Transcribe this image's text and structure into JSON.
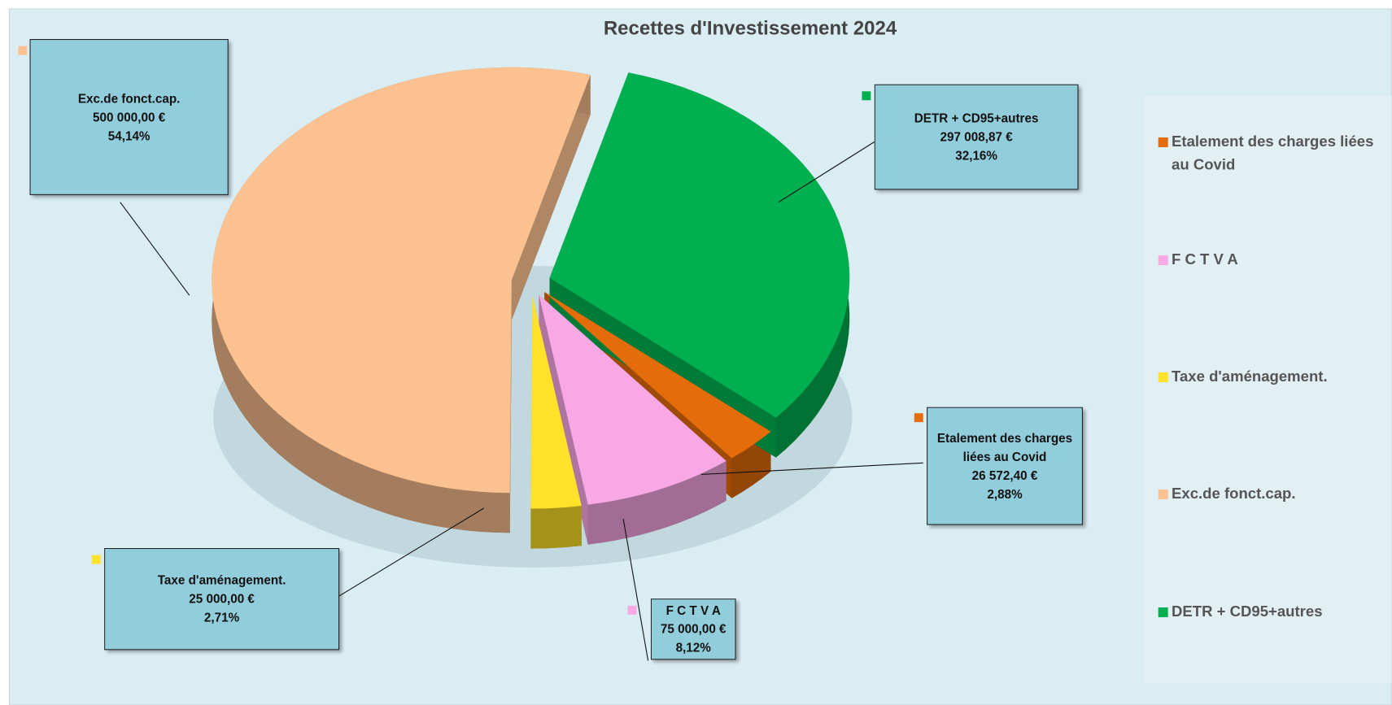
{
  "chart_data": {
    "type": "pie3d",
    "title": "Recettes d'Investissement 2024",
    "categories": [
      "Etalement des charges liées au Covid",
      "F C T V A",
      "Taxe d'aménagement.",
      "Exc.de fonct.cap.",
      "DETR + CD95+autres"
    ],
    "values": [
      26572.4,
      75000.0,
      25000.0,
      500000.0,
      297008.87
    ],
    "value_labels": [
      "26 572,40 €",
      "75 000,00 €",
      "25 000,00 €",
      "500 000,00 €",
      "297 008,87 €"
    ],
    "percents": [
      2.88,
      8.12,
      2.71,
      54.14,
      32.16
    ],
    "percent_labels": [
      "2,88%",
      "8,12%",
      "2,71%",
      "54,14%",
      "32,16%"
    ],
    "colors": [
      "#e46c0a",
      "#f9a8e6",
      "#ffe229",
      "#fcc190",
      "#00b050"
    ],
    "legend": "right"
  }
}
